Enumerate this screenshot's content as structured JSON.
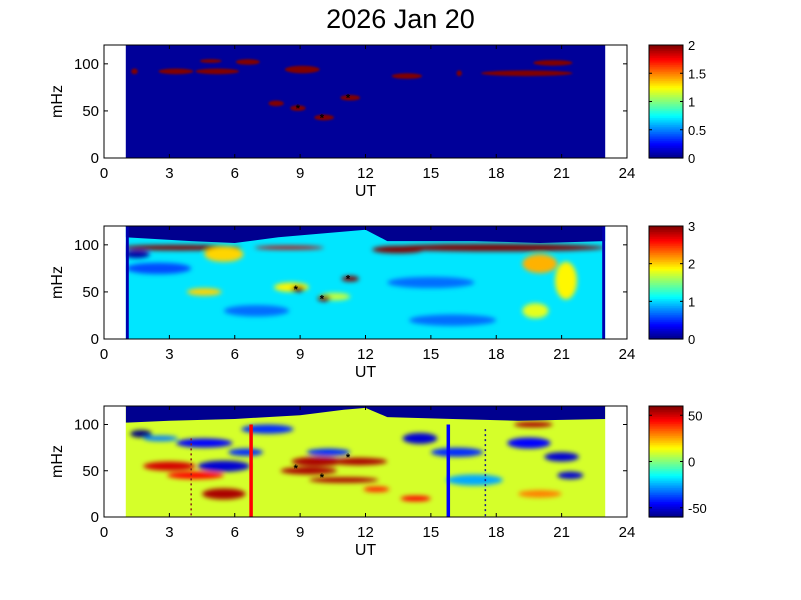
{
  "title": "2026 Jan 20",
  "chart_data": [
    {
      "type": "heatmap",
      "xlabel": "UT",
      "ylabel": "mHz",
      "xlim": [
        0,
        24
      ],
      "ylim": [
        0,
        120
      ],
      "xticks": [
        "0",
        "3",
        "6",
        "9",
        "12",
        "15",
        "18",
        "21",
        "24"
      ],
      "yticks": [
        "0",
        "50",
        "100"
      ],
      "data_range_hours": [
        1,
        23
      ],
      "clim": [
        0,
        2
      ],
      "colorbar_ticks": [
        "0",
        "0.5",
        "1",
        "1.5",
        "2"
      ],
      "background_value": 0.05,
      "top_mask": [],
      "blobs": [
        [
          1.4,
          92,
          0.15,
          3,
          2
        ],
        [
          3.3,
          92,
          0.8,
          3,
          2
        ],
        [
          4.9,
          103,
          0.5,
          2,
          2
        ],
        [
          5.2,
          92,
          1.0,
          3,
          2
        ],
        [
          6.6,
          102,
          0.55,
          3,
          2
        ],
        [
          7.9,
          58,
          0.35,
          3,
          2
        ],
        [
          8.9,
          53,
          0.35,
          3,
          2
        ],
        [
          9.1,
          94,
          0.8,
          4,
          2
        ],
        [
          10.1,
          43,
          0.45,
          3,
          2
        ],
        [
          11.3,
          64,
          0.45,
          3,
          2
        ],
        [
          13.9,
          87,
          0.7,
          3,
          2
        ],
        [
          16.3,
          90,
          0.12,
          3,
          2
        ],
        [
          19.4,
          90,
          2.1,
          3,
          2
        ],
        [
          20.6,
          101,
          0.9,
          3,
          2
        ]
      ],
      "markers": [
        [
          8.9,
          53
        ],
        [
          10.0,
          43
        ],
        [
          11.2,
          64
        ]
      ],
      "vlines": []
    },
    {
      "type": "heatmap",
      "xlabel": "UT",
      "ylabel": "mHz",
      "xlim": [
        0,
        24
      ],
      "ylim": [
        0,
        120
      ],
      "xticks": [
        "0",
        "3",
        "6",
        "9",
        "12",
        "15",
        "18",
        "21",
        "24"
      ],
      "yticks": [
        "0",
        "50",
        "100"
      ],
      "data_range_hours": [
        1,
        23
      ],
      "clim": [
        0,
        3
      ],
      "colorbar_ticks": [
        "0",
        "1",
        "2",
        "3"
      ],
      "background_value": 1.05,
      "top_mask": [
        [
          1,
          108
        ],
        [
          4,
          104
        ],
        [
          6,
          102
        ],
        [
          8,
          108
        ],
        [
          10,
          112
        ],
        [
          12,
          116
        ],
        [
          13,
          104
        ],
        [
          17,
          104
        ],
        [
          20,
          102
        ],
        [
          23,
          104
        ]
      ],
      "blobs": [
        [
          3.5,
          97,
          2.8,
          3,
          3
        ],
        [
          8.5,
          97,
          1.6,
          2,
          2.8
        ],
        [
          18,
          97,
          5,
          4,
          3
        ],
        [
          13.5,
          95,
          1.2,
          4,
          3
        ],
        [
          5.5,
          90,
          0.9,
          8,
          2
        ],
        [
          4.6,
          50,
          0.8,
          4,
          2
        ],
        [
          8.6,
          55,
          0.8,
          5,
          1.9
        ],
        [
          10.6,
          45,
          0.7,
          4,
          1.7
        ],
        [
          11.3,
          64,
          0.4,
          3,
          3
        ],
        [
          8.9,
          53,
          0.3,
          3,
          3
        ],
        [
          10.1,
          43,
          0.3,
          3,
          3
        ],
        [
          20,
          80,
          0.8,
          10,
          2.1
        ],
        [
          21.2,
          62,
          0.5,
          20,
          1.9
        ],
        [
          19.8,
          30,
          0.6,
          8,
          1.8
        ],
        [
          2.5,
          75,
          1.5,
          6,
          0.6
        ],
        [
          7,
          30,
          1.5,
          6,
          0.7
        ],
        [
          15,
          60,
          2,
          6,
          0.7
        ],
        [
          16,
          20,
          2,
          6,
          0.7
        ],
        [
          1.5,
          90,
          0.6,
          4,
          0.1
        ]
      ],
      "markers": [
        [
          8.8,
          53
        ],
        [
          10.0,
          43
        ],
        [
          11.2,
          64
        ]
      ],
      "vlines": []
    },
    {
      "type": "heatmap",
      "xlabel": "UT",
      "ylabel": "mHz",
      "xlim": [
        0,
        24
      ],
      "ylim": [
        0,
        120
      ],
      "xticks": [
        "0",
        "3",
        "6",
        "9",
        "12",
        "15",
        "18",
        "21",
        "24"
      ],
      "yticks": [
        "0",
        "50",
        "100"
      ],
      "data_range_hours": [
        1,
        23
      ],
      "clim": [
        -60,
        60
      ],
      "colorbar_ticks": [
        "50",
        "0",
        "-50"
      ],
      "background_value": 10,
      "top_mask": [
        [
          1,
          102
        ],
        [
          3,
          104
        ],
        [
          6,
          106
        ],
        [
          9,
          110
        ],
        [
          11,
          116
        ],
        [
          12,
          118
        ],
        [
          13,
          108
        ],
        [
          16,
          106
        ],
        [
          19,
          104
        ],
        [
          23,
          106
        ]
      ],
      "blobs": [
        [
          3,
          55,
          1.2,
          5,
          50
        ],
        [
          4.2,
          45,
          1.3,
          4,
          45
        ],
        [
          5.5,
          25,
          1,
          6,
          55
        ],
        [
          9.8,
          60,
          1.2,
          5,
          55
        ],
        [
          11.7,
          60,
          1.3,
          4,
          55
        ],
        [
          9.4,
          50,
          1.3,
          4,
          55
        ],
        [
          11,
          40,
          1.6,
          3,
          55
        ],
        [
          12.5,
          30,
          0.6,
          3,
          40
        ],
        [
          14.3,
          20,
          0.7,
          3,
          45
        ],
        [
          19.7,
          100,
          0.9,
          3,
          55
        ],
        [
          1.7,
          90,
          0.5,
          4,
          -60
        ],
        [
          4.6,
          80,
          1.3,
          5,
          -45
        ],
        [
          5.5,
          55,
          1.2,
          6,
          -50
        ],
        [
          7.5,
          95,
          1.2,
          5,
          -40
        ],
        [
          10.3,
          70,
          1,
          4,
          -40
        ],
        [
          14.5,
          85,
          0.8,
          6,
          -50
        ],
        [
          16.2,
          70,
          1.2,
          5,
          -40
        ],
        [
          19.5,
          80,
          1,
          6,
          -45
        ],
        [
          21,
          65,
          0.8,
          5,
          -50
        ],
        [
          21.4,
          45,
          0.6,
          4,
          -50
        ],
        [
          2.6,
          85,
          0.8,
          3,
          -30
        ],
        [
          6.5,
          70,
          0.8,
          4,
          -40
        ],
        [
          17,
          40,
          1.3,
          6,
          -25
        ],
        [
          20,
          25,
          1,
          4,
          30
        ]
      ],
      "markers": [
        [
          8.8,
          53
        ],
        [
          10.0,
          43
        ],
        [
          11.2,
          65
        ]
      ],
      "vlines": [
        {
          "t": 6.75,
          "top": 100,
          "color": "#ff0000",
          "style": "solid"
        },
        {
          "t": 15.8,
          "top": 100,
          "color": "#0000ff",
          "style": "solid"
        },
        {
          "t": 4.0,
          "top": 85,
          "color": "#8b1a1a",
          "style": "dotted"
        },
        {
          "t": 17.5,
          "top": 95,
          "color": "#1a1a8b",
          "style": "dotted"
        }
      ]
    }
  ]
}
